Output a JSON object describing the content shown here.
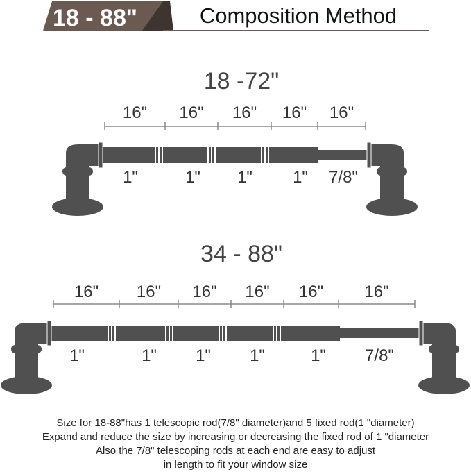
{
  "header": {
    "badge": "18 - 88\"",
    "title": "Composition Method",
    "badge_color": "#6b5a52",
    "badge_dark": "#3e3430"
  },
  "colors": {
    "rod": "#505050",
    "dim_line": "#888888"
  },
  "diagrams": [
    {
      "heading": "18 -72\"",
      "segment_labels": [
        "16\"",
        "16\"",
        "16\"",
        "16\"",
        "16\""
      ],
      "rod_labels": [
        "1\"",
        "1\"",
        "1\"",
        "1\"",
        "7/8\""
      ]
    },
    {
      "heading": "34 - 88\"",
      "segment_labels": [
        "16\"",
        "16\"",
        "16\"",
        "16\"",
        "16\"",
        "16\""
      ],
      "rod_labels": [
        "1\"",
        "1\"",
        "1\"",
        "1\"",
        "1\"",
        "7/8\""
      ]
    }
  ],
  "caption": [
    "Size for 18-88\"has 1 telescopic rod(7/8\" diameter)and 5 fixed rod(1 \"diameter)",
    "Expand and reduce the size by increasing or decreasing the fixed rod of 1 \"diameter",
    "Also the 7/8\" telescoping rods at each end are easy to adjust",
    "in length to fit your window size"
  ]
}
